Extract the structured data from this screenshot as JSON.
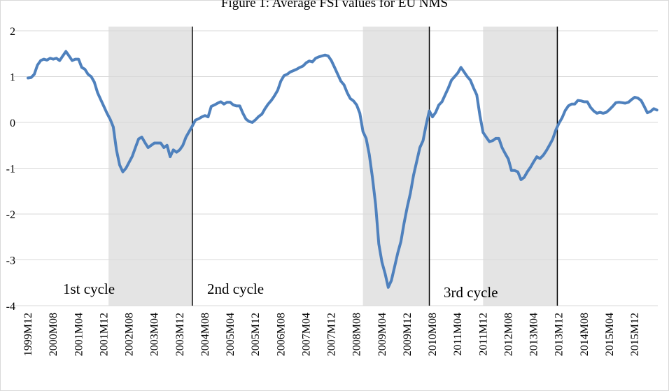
{
  "chart_data": {
    "type": "line",
    "title": "Figure 1: Average FSI values for EU NMS",
    "categories": [
      "1999M12",
      null,
      null,
      null,
      null,
      null,
      null,
      null,
      "2000M08",
      null,
      null,
      null,
      null,
      null,
      null,
      null,
      "2001M04",
      null,
      null,
      null,
      null,
      null,
      null,
      null,
      "2001M12",
      null,
      null,
      null,
      null,
      null,
      null,
      null,
      "2002M08",
      null,
      null,
      null,
      null,
      null,
      null,
      null,
      "2003M04",
      null,
      null,
      null,
      null,
      null,
      null,
      null,
      "2003M12",
      null,
      null,
      null,
      null,
      null,
      null,
      null,
      "2004M08",
      null,
      null,
      null,
      null,
      null,
      null,
      null,
      "2005M04",
      null,
      null,
      null,
      null,
      null,
      null,
      null,
      "2005M12",
      null,
      null,
      null,
      null,
      null,
      null,
      null,
      "2006M08",
      null,
      null,
      null,
      null,
      null,
      null,
      null,
      "2007M04",
      null,
      null,
      null,
      null,
      null,
      null,
      null,
      "2007M12",
      null,
      null,
      null,
      null,
      null,
      null,
      null,
      "2008M08",
      null,
      null,
      null,
      null,
      null,
      null,
      null,
      "2009M04",
      null,
      null,
      null,
      null,
      null,
      null,
      null,
      "2009M12",
      null,
      null,
      null,
      null,
      null,
      null,
      null,
      "2010M08",
      null,
      null,
      null,
      null,
      null,
      null,
      null,
      "2011M04",
      null,
      null,
      null,
      null,
      null,
      null,
      null,
      "2011M12",
      null,
      null,
      null,
      null,
      null,
      null,
      null,
      "2012M08",
      null,
      null,
      null,
      null,
      null,
      null,
      null,
      "2013M04",
      null,
      null,
      null,
      null,
      null,
      null,
      null,
      "2013M12",
      null,
      null,
      null,
      null,
      null,
      null,
      null,
      "2014M08",
      null,
      null,
      null,
      null,
      null,
      null,
      null,
      "2015M04",
      null,
      null,
      null,
      null,
      null,
      null,
      null,
      "2015M12",
      null,
      null,
      null,
      null,
      null,
      null,
      null
    ],
    "values": [
      0.97,
      0.98,
      1.05,
      1.25,
      1.35,
      1.38,
      1.36,
      1.4,
      1.38,
      1.4,
      1.35,
      1.45,
      1.55,
      1.45,
      1.35,
      1.38,
      1.38,
      1.2,
      1.16,
      1.05,
      1.0,
      0.88,
      0.65,
      0.5,
      0.35,
      0.2,
      0.07,
      -0.1,
      -0.6,
      -0.93,
      -1.08,
      -1.0,
      -0.87,
      -0.74,
      -0.55,
      -0.36,
      -0.32,
      -0.44,
      -0.55,
      -0.5,
      -0.45,
      -0.45,
      -0.45,
      -0.55,
      -0.5,
      -0.75,
      -0.6,
      -0.65,
      -0.6,
      -0.5,
      -0.32,
      -0.2,
      -0.08,
      0.05,
      0.08,
      0.12,
      0.15,
      0.12,
      0.35,
      0.38,
      0.42,
      0.45,
      0.4,
      0.44,
      0.44,
      0.38,
      0.36,
      0.36,
      0.2,
      0.07,
      0.02,
      0.0,
      0.06,
      0.13,
      0.18,
      0.3,
      0.4,
      0.48,
      0.58,
      0.7,
      0.9,
      1.02,
      1.05,
      1.1,
      1.13,
      1.16,
      1.2,
      1.23,
      1.3,
      1.34,
      1.32,
      1.4,
      1.43,
      1.45,
      1.47,
      1.45,
      1.35,
      1.2,
      1.05,
      0.9,
      0.82,
      0.65,
      0.52,
      0.47,
      0.38,
      0.2,
      -0.2,
      -0.35,
      -0.7,
      -1.2,
      -1.8,
      -2.65,
      -3.05,
      -3.3,
      -3.6,
      -3.45,
      -3.15,
      -2.85,
      -2.6,
      -2.2,
      -1.85,
      -1.55,
      -1.15,
      -0.85,
      -0.55,
      -0.4,
      -0.05,
      0.25,
      0.12,
      0.22,
      0.38,
      0.45,
      0.6,
      0.75,
      0.92,
      1.0,
      1.08,
      1.2,
      1.1,
      1.0,
      0.92,
      0.75,
      0.6,
      0.15,
      -0.22,
      -0.32,
      -0.42,
      -0.4,
      -0.35,
      -0.35,
      -0.55,
      -0.68,
      -0.8,
      -1.05,
      -1.05,
      -1.08,
      -1.25,
      -1.2,
      -1.08,
      -0.98,
      -0.86,
      -0.75,
      -0.79,
      -0.72,
      -0.62,
      -0.5,
      -0.37,
      -0.17,
      -0.02,
      0.1,
      0.26,
      0.36,
      0.4,
      0.4,
      0.48,
      0.47,
      0.45,
      0.45,
      0.33,
      0.25,
      0.2,
      0.22,
      0.2,
      0.22,
      0.28,
      0.35,
      0.43,
      0.44,
      0.43,
      0.42,
      0.44,
      0.5,
      0.55,
      0.53,
      0.48,
      0.35,
      0.21,
      0.24,
      0.3,
      0.27
    ],
    "color": "#4f81bd",
    "ylim": [
      -4,
      2
    ],
    "yticks": [
      -4,
      -3,
      -2,
      -1,
      0,
      1,
      2
    ],
    "grid": true,
    "shaded_periods": [
      [
        25.5,
        52
      ],
      [
        106,
        127
      ],
      [
        144,
        167.5
      ]
    ],
    "cycle_boundaries": [
      52,
      127,
      167.5
    ],
    "annotations": [
      "1st cycle",
      "2nd cycle",
      "3rd cycle"
    ]
  }
}
